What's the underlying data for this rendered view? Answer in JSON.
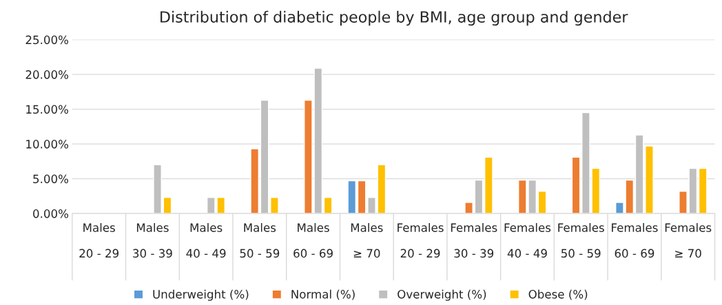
{
  "chart_data": {
    "type": "bar",
    "title": "Distribution of diabetic people by BMI, age group and gender",
    "categories": [
      "Males\n\n20 - 29",
      "Males\n\n30 - 39",
      "Males\n\n40 - 49",
      "Males\n\n50 - 59",
      "Males\n\n60 - 69",
      "Males\n\n≥ 70",
      "Females\n\n20 - 29",
      "Females\n\n30 - 39",
      "Females\n\n40 - 49",
      "Females\n\n50 - 59",
      "Females\n\n60 - 69",
      "Females\n\n≥ 70"
    ],
    "series": [
      {
        "name": "Underweight (%)",
        "color": "#5b9bd5",
        "values": [
          null,
          null,
          null,
          null,
          null,
          4.7,
          null,
          null,
          null,
          null,
          1.6,
          null
        ]
      },
      {
        "name": "Normal (%)",
        "color": "#ed7d31",
        "values": [
          null,
          null,
          null,
          9.3,
          16.3,
          4.7,
          null,
          1.6,
          4.8,
          8.1,
          4.8,
          3.2
        ]
      },
      {
        "name": "Overweight (%)",
        "color": "#bfbfbf",
        "values": [
          null,
          7.0,
          2.3,
          16.3,
          20.9,
          2.3,
          null,
          4.8,
          4.8,
          14.5,
          11.3,
          6.5
        ]
      },
      {
        "name": "Obese (%)",
        "color": "#ffc000",
        "values": [
          null,
          2.3,
          2.3,
          2.3,
          2.3,
          7.0,
          null,
          8.1,
          3.2,
          6.5,
          9.7,
          6.5
        ]
      }
    ],
    "ylim": [
      0,
      25
    ],
    "yticks": [
      {
        "value": 0,
        "label": "0.00%"
      },
      {
        "value": 5,
        "label": "5.00%"
      },
      {
        "value": 10,
        "label": "10.00%"
      },
      {
        "value": 15,
        "label": "15.00%"
      },
      {
        "value": 20,
        "label": "20.00%"
      },
      {
        "value": 25,
        "label": "25.00%"
      }
    ],
    "grid": "y",
    "legend": "bottom"
  }
}
